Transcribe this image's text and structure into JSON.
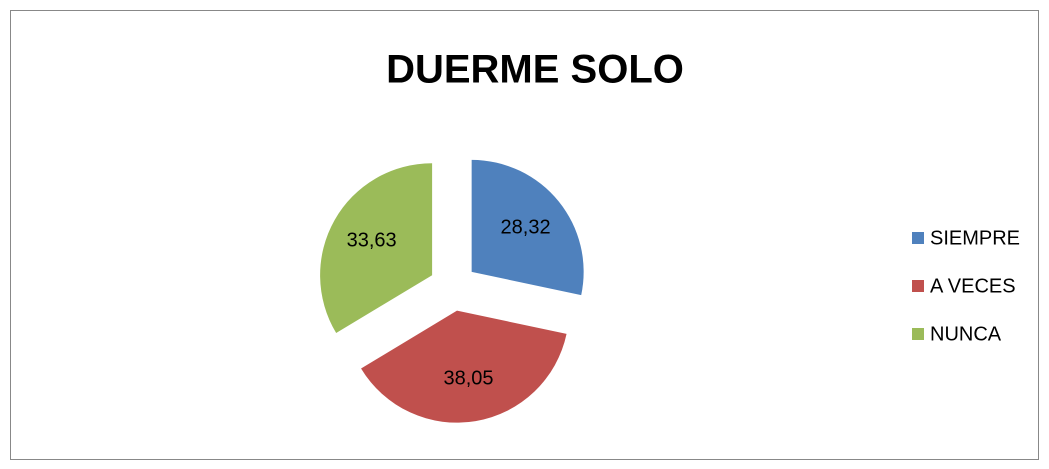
{
  "chart_data": {
    "type": "pie",
    "title": "DUERME SOLO",
    "categories": [
      "SIEMPRE",
      "A VECES",
      "NUNCA"
    ],
    "values": [
      28.32,
      38.05,
      33.63
    ],
    "value_labels": [
      "28,32",
      "38,05",
      "33,63"
    ],
    "colors": [
      "#4f81bd",
      "#c0504d",
      "#9bbb59"
    ],
    "legend": "right"
  }
}
